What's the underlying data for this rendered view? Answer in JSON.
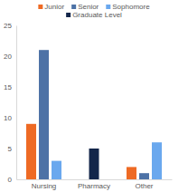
{
  "chart_data": {
    "type": "bar",
    "categories": [
      "Nursing",
      "Pharmacy",
      "Other"
    ],
    "series": [
      {
        "name": "Junior",
        "color": "#ee6a24",
        "values": [
          9,
          null,
          2
        ]
      },
      {
        "name": "Senior",
        "color": "#4d72a6",
        "values": [
          21,
          null,
          1
        ]
      },
      {
        "name": "Sophomore",
        "color": "#6aa8ee",
        "values": [
          3,
          null,
          6
        ]
      },
      {
        "name": "Graduate Level",
        "color": "#13264a",
        "values": [
          null,
          5,
          null
        ]
      }
    ],
    "ylim": [
      0,
      25
    ],
    "yticks": [
      0,
      5,
      10,
      15,
      20,
      25
    ],
    "grid": false,
    "legend": "top"
  }
}
